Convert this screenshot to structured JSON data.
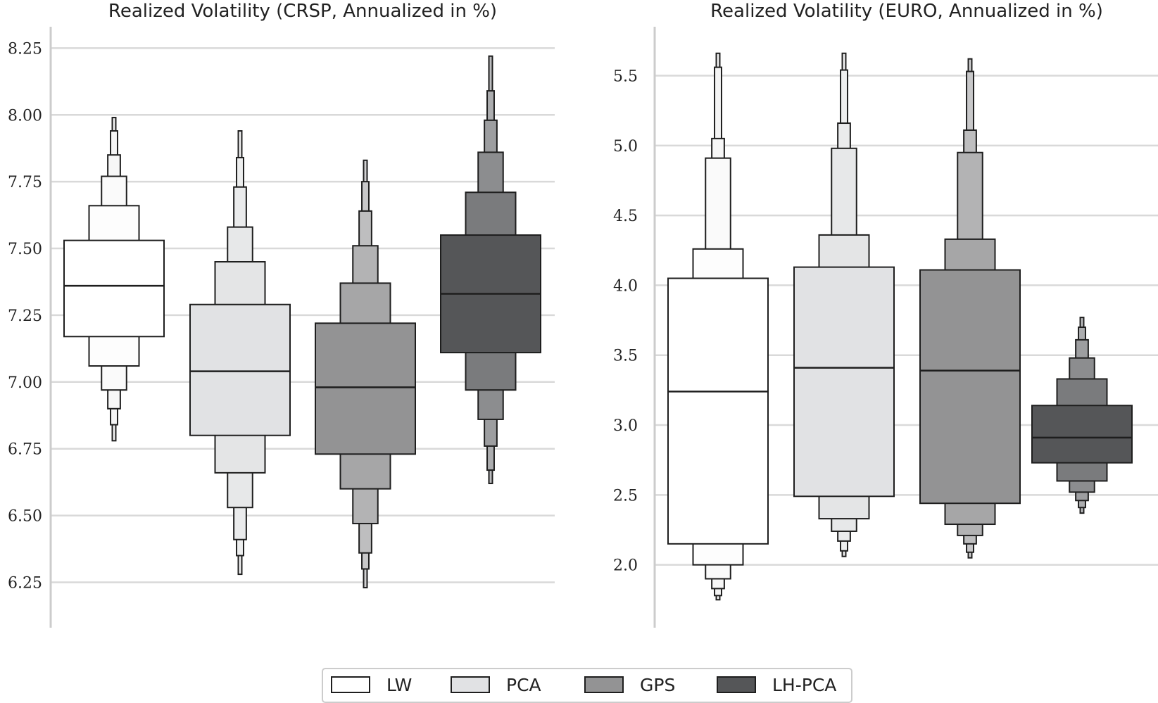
{
  "chart_data": [
    {
      "type": "boxen",
      "title": "Realized Volatility (CRSP, Annualized in %)",
      "xlabel": "",
      "ylabel": "",
      "ylim": [
        6.08,
        8.33
      ],
      "yticks": [
        6.25,
        6.5,
        6.75,
        7.0,
        7.25,
        7.5,
        7.75,
        8.0,
        8.25
      ],
      "ytick_labels": [
        "6.25",
        "6.50",
        "6.75",
        "7.00",
        "7.25",
        "7.50",
        "7.75",
        "8.00",
        "8.25"
      ],
      "grid": "horizontal",
      "series": [
        {
          "name": "LW",
          "median": 7.36,
          "levels": [
            {
              "low": 7.17,
              "high": 7.53
            },
            {
              "low": 7.06,
              "high": 7.66
            },
            {
              "low": 6.97,
              "high": 7.77
            },
            {
              "low": 6.9,
              "high": 7.85
            },
            {
              "low": 6.84,
              "high": 7.94
            },
            {
              "low": 6.78,
              "high": 7.99
            }
          ]
        },
        {
          "name": "PCA",
          "median": 7.04,
          "levels": [
            {
              "low": 6.8,
              "high": 7.29
            },
            {
              "low": 6.66,
              "high": 7.45
            },
            {
              "low": 6.53,
              "high": 7.58
            },
            {
              "low": 6.41,
              "high": 7.73
            },
            {
              "low": 6.35,
              "high": 7.84
            },
            {
              "low": 6.28,
              "high": 7.94
            }
          ]
        },
        {
          "name": "GPS",
          "median": 6.98,
          "levels": [
            {
              "low": 6.73,
              "high": 7.22
            },
            {
              "low": 6.6,
              "high": 7.37
            },
            {
              "low": 6.47,
              "high": 7.51
            },
            {
              "low": 6.36,
              "high": 7.64
            },
            {
              "low": 6.3,
              "high": 7.75
            },
            {
              "low": 6.23,
              "high": 7.83
            }
          ]
        },
        {
          "name": "LH-PCA",
          "median": 7.33,
          "levels": [
            {
              "low": 7.11,
              "high": 7.55
            },
            {
              "low": 6.97,
              "high": 7.71
            },
            {
              "low": 6.86,
              "high": 7.86
            },
            {
              "low": 6.76,
              "high": 7.98
            },
            {
              "low": 6.67,
              "high": 8.09
            },
            {
              "low": 6.62,
              "high": 8.22
            }
          ]
        }
      ]
    },
    {
      "type": "boxen",
      "title": "Realized Volatility (EURO, Annualized in %)",
      "xlabel": "",
      "ylabel": "",
      "ylim": [
        1.55,
        5.85
      ],
      "yticks": [
        2.0,
        2.5,
        3.0,
        3.5,
        4.0,
        4.5,
        5.0,
        5.5
      ],
      "ytick_labels": [
        "2.0",
        "2.5",
        "3.0",
        "3.5",
        "4.0",
        "4.5",
        "5.0",
        "5.5"
      ],
      "grid": "horizontal",
      "series": [
        {
          "name": "LW",
          "median": 3.24,
          "levels": [
            {
              "low": 2.15,
              "high": 4.05
            },
            {
              "low": 2.0,
              "high": 4.26
            },
            {
              "low": 1.9,
              "high": 4.91
            },
            {
              "low": 1.83,
              "high": 5.05
            },
            {
              "low": 1.78,
              "high": 5.56
            },
            {
              "low": 1.75,
              "high": 5.66
            }
          ]
        },
        {
          "name": "PCA",
          "median": 3.41,
          "levels": [
            {
              "low": 2.49,
              "high": 4.13
            },
            {
              "low": 2.33,
              "high": 4.36
            },
            {
              "low": 2.24,
              "high": 4.98
            },
            {
              "low": 2.17,
              "high": 5.16
            },
            {
              "low": 2.1,
              "high": 5.54
            },
            {
              "low": 2.06,
              "high": 5.66
            }
          ]
        },
        {
          "name": "GPS",
          "median": 3.39,
          "levels": [
            {
              "low": 2.44,
              "high": 4.11
            },
            {
              "low": 2.29,
              "high": 4.33
            },
            {
              "low": 2.21,
              "high": 4.95
            },
            {
              "low": 2.15,
              "high": 5.11
            },
            {
              "low": 2.09,
              "high": 5.53
            },
            {
              "low": 2.05,
              "high": 5.62
            }
          ]
        },
        {
          "name": "LH-PCA",
          "median": 2.91,
          "levels": [
            {
              "low": 2.73,
              "high": 3.14
            },
            {
              "low": 2.6,
              "high": 3.33
            },
            {
              "low": 2.52,
              "high": 3.48
            },
            {
              "low": 2.46,
              "high": 3.61
            },
            {
              "low": 2.41,
              "high": 3.7
            },
            {
              "low": 2.37,
              "high": 3.77
            }
          ]
        }
      ]
    }
  ],
  "legend": {
    "placement": "bottom-center",
    "items": [
      {
        "label": "LW",
        "color": "#ffffff"
      },
      {
        "label": "PCA",
        "color": "#e1e2e4"
      },
      {
        "label": "GPS",
        "color": "#939394"
      },
      {
        "label": "LH-PCA",
        "color": "#555658"
      }
    ]
  },
  "colors": {
    "LW": [
      "#ffffff",
      "#fdfdfd",
      "#fafafa",
      "#f7f7f7",
      "#f4f4f4",
      "#f1f1f1"
    ],
    "PCA": [
      "#e1e2e4",
      "#e4e5e6",
      "#e7e8e9",
      "#eaebec",
      "#edeeee",
      "#f0f0f1"
    ],
    "GPS": [
      "#939394",
      "#a6a6a7",
      "#b3b3b4",
      "#bebebf",
      "#c8c8c9",
      "#d2d2d3"
    ],
    "LH-PCA": [
      "#555658",
      "#7a7b7d",
      "#8c8d8f",
      "#9d9ea0",
      "#acadaf",
      "#bbbcbe"
    ]
  }
}
